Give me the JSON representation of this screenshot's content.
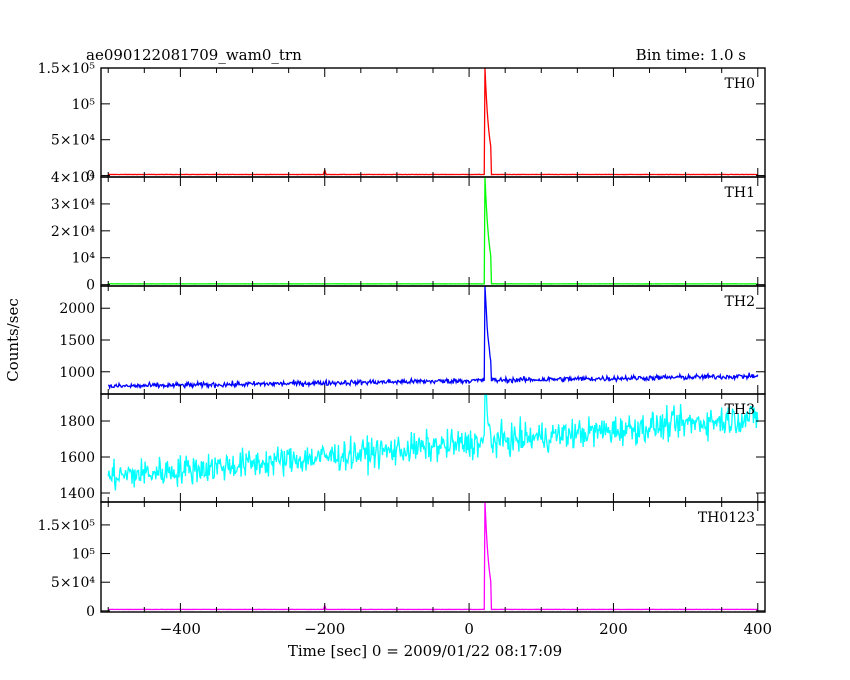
{
  "title_left": "ae090122081709_wam0_trn",
  "title_right": "Bin time: 1.0 s",
  "chart_data": {
    "type": "line",
    "ylabel": "Counts/sec",
    "xlabel": "Time [sec] 0 = 2009/01/22 08:17:09",
    "xlim": [
      -510,
      410
    ],
    "x_ticks": [
      -400,
      -200,
      0,
      200,
      400
    ],
    "x_tick_labels": [
      "−400",
      "−200",
      "0",
      "200",
      "400"
    ],
    "panels": [
      {
        "name": "TH0",
        "color": "#ff0000",
        "ylim": [
          -2000,
          150000
        ],
        "y_ticks": [
          0,
          50000,
          100000,
          150000
        ],
        "y_tick_labels": [
          "0",
          "5×10⁴",
          "10⁵",
          "1.5×10⁵"
        ],
        "baseline": 1500,
        "trend": 0,
        "noise": 150,
        "peak": {
          "t": 22,
          "value": 150000,
          "decay": 6
        },
        "minor_peak": {
          "t": -200,
          "value": 8000
        }
      },
      {
        "name": "TH1",
        "color": "#00ff00",
        "ylim": [
          -500,
          40000
        ],
        "y_ticks": [
          0,
          10000,
          20000,
          30000,
          40000
        ],
        "y_tick_labels": [
          "0",
          "10⁴",
          "2×10⁴",
          "3×10⁴",
          "4×10⁴"
        ],
        "baseline": 300,
        "trend": 0,
        "noise": 40,
        "peak": {
          "t": 22,
          "value": 40000,
          "decay": 6
        }
      },
      {
        "name": "TH2",
        "color": "#0000ff",
        "ylim": [
          650,
          2350
        ],
        "y_ticks": [
          1000,
          1500,
          2000
        ],
        "y_tick_labels": [
          "1000",
          "1500",
          "2000"
        ],
        "baseline": 770,
        "trend": 0.18,
        "noise": 30,
        "peak": {
          "t": 22,
          "value": 2350,
          "decay": 5
        }
      },
      {
        "name": "TH3",
        "color": "#00ffff",
        "ylim": [
          1350,
          1950
        ],
        "y_ticks": [
          1400,
          1600,
          1800
        ],
        "y_tick_labels": [
          "1400",
          "1600",
          "1800"
        ],
        "baseline": 1490,
        "trend": 0.37,
        "noise": 60,
        "peak": {
          "t": 22,
          "value": 1950,
          "decay": 3
        }
      },
      {
        "name": "TH0123",
        "color": "#ff00ff",
        "ylim": [
          -2000,
          190000
        ],
        "y_ticks": [
          0,
          50000,
          100000,
          150000
        ],
        "y_tick_labels": [
          "0",
          "5×10⁴",
          "10⁵",
          "1.5×10⁵"
        ],
        "baseline": 2500,
        "trend": 0,
        "noise": 150,
        "peak": {
          "t": 22,
          "value": 190000,
          "decay": 6
        },
        "minor_peak": {
          "t": -200,
          "value": 9000
        }
      }
    ]
  }
}
